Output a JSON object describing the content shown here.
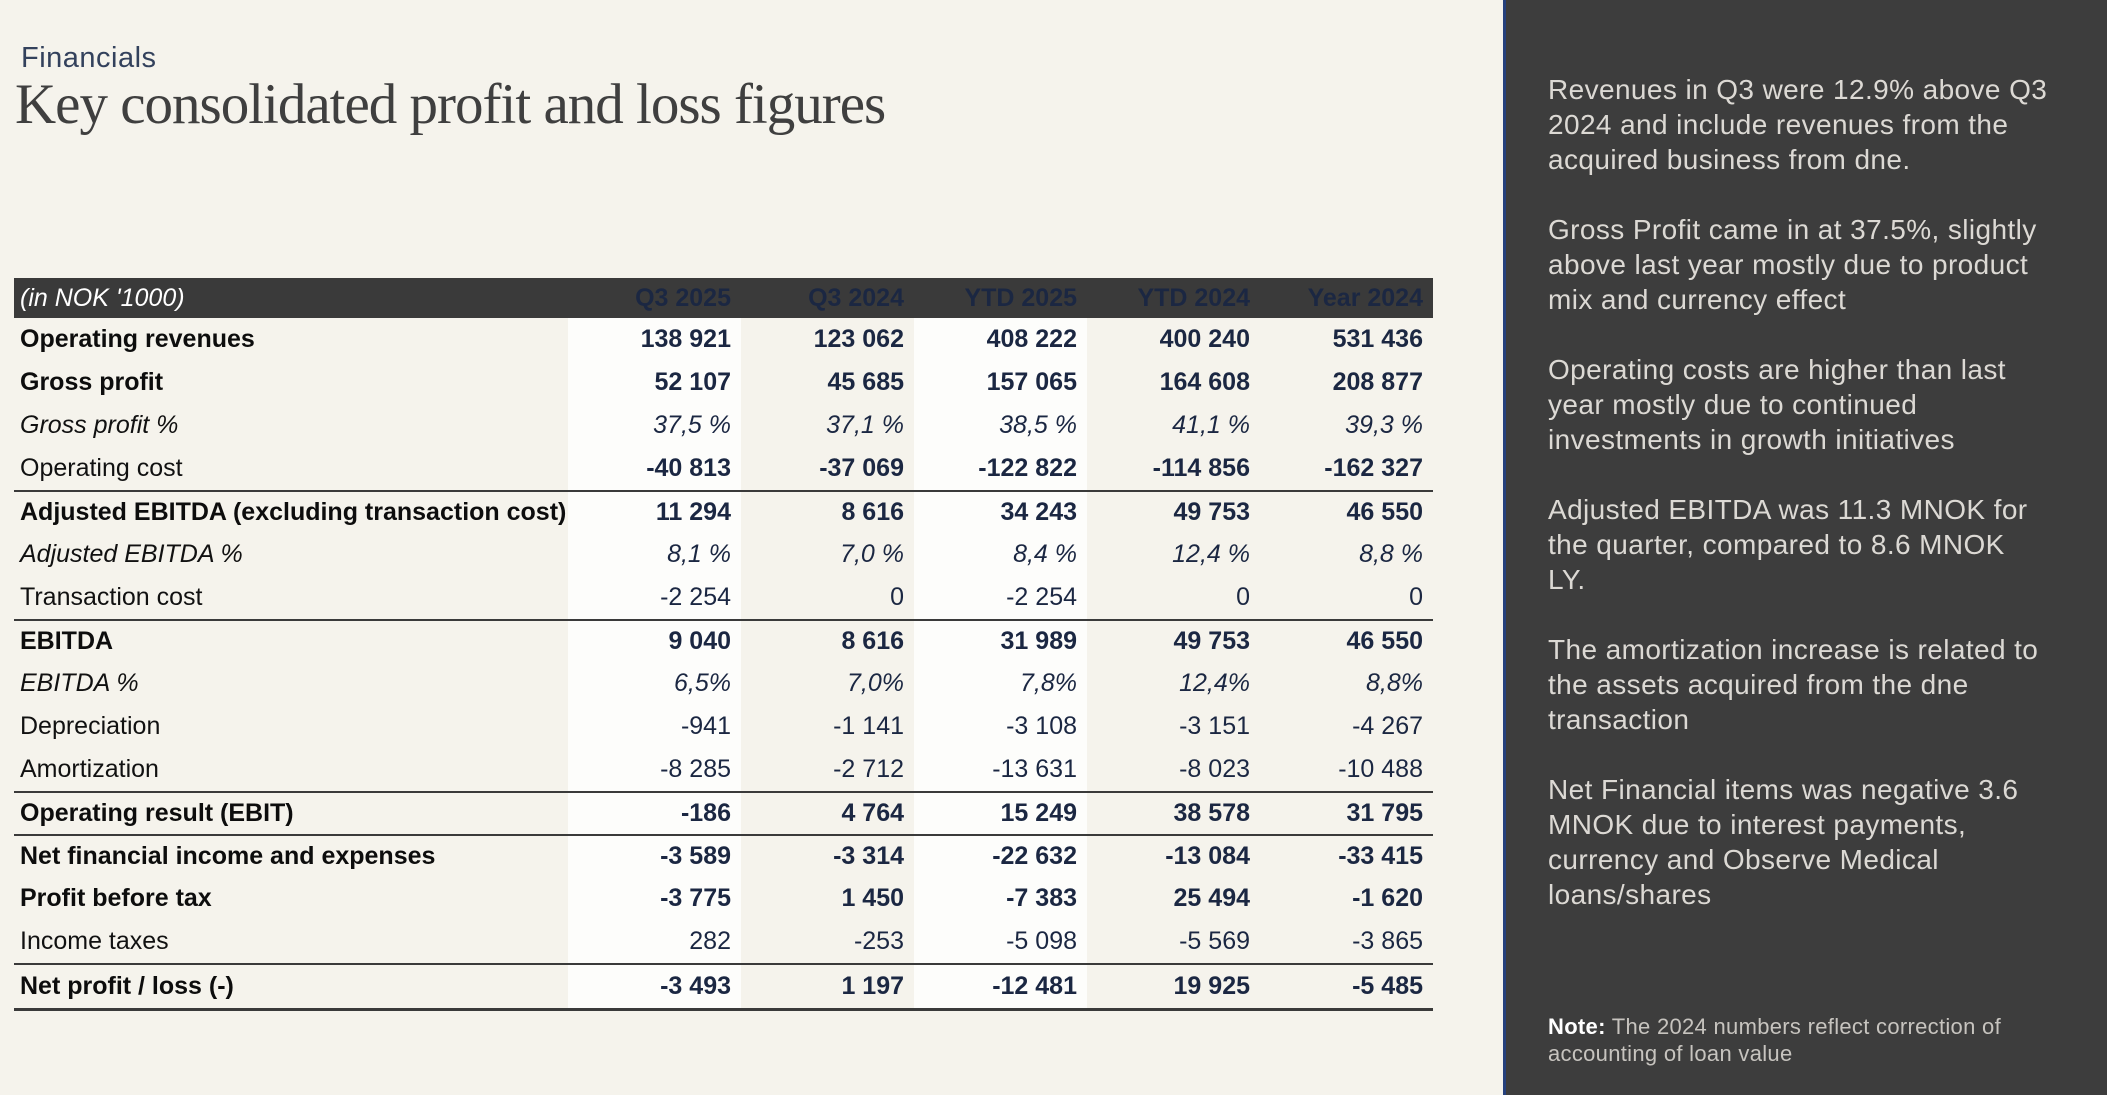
{
  "page": {
    "eyebrow": "Financials",
    "title": "Key consolidated profit and loss figures"
  },
  "table": {
    "unit_label": "(in NOK '1000)",
    "columns": [
      "Q3 2025",
      "Q3 2024",
      "YTD 2025",
      "YTD 2024",
      "Year 2024"
    ],
    "rows": [
      {
        "label": "Operating revenues",
        "values": [
          "138 921",
          "123 062",
          "408 222",
          "400 240",
          "531 436"
        ]
      },
      {
        "label": "Gross profit",
        "values": [
          "52 107",
          "45 685",
          "157 065",
          "164 608",
          "208 877"
        ]
      },
      {
        "label": "Gross profit %",
        "values": [
          "37,5 %",
          "37,1 %",
          "38,5 %",
          "41,1 %",
          "39,3 %"
        ]
      },
      {
        "label": "Operating cost",
        "values": [
          "-40 813",
          "-37 069",
          "-122 822",
          "-114 856",
          "-162 327"
        ]
      },
      {
        "label": "Adjusted EBITDA (excluding transaction cost)",
        "values": [
          "11 294",
          "8 616",
          "34 243",
          "49 753",
          "46 550"
        ]
      },
      {
        "label": "Adjusted EBITDA %",
        "values": [
          "8,1 %",
          "7,0 %",
          "8,4 %",
          "12,4 %",
          "8,8 %"
        ]
      },
      {
        "label": "Transaction cost",
        "values": [
          "-2 254",
          "0",
          "-2 254",
          "0",
          "0"
        ]
      },
      {
        "label": "EBITDA",
        "values": [
          "9 040",
          "8 616",
          "31 989",
          "49 753",
          "46 550"
        ]
      },
      {
        "label": "EBITDA %",
        "values": [
          "6,5%",
          "7,0%",
          "7,8%",
          "12,4%",
          "8,8%"
        ]
      },
      {
        "label": "Depreciation",
        "values": [
          "-941",
          "-1 141",
          "-3 108",
          "-3 151",
          "-4 267"
        ]
      },
      {
        "label": "Amortization",
        "values": [
          "-8 285",
          "-2 712",
          "-13 631",
          "-8 023",
          "-10 488"
        ]
      },
      {
        "label": "Operating result (EBIT)",
        "values": [
          "-186",
          "4 764",
          "15 249",
          "38 578",
          "31 795"
        ]
      },
      {
        "label": "Net financial income and expenses",
        "values": [
          "-3 589",
          "-3 314",
          "-22 632",
          "-13 084",
          "-33 415"
        ]
      },
      {
        "label": "Profit before tax",
        "values": [
          "-3 775",
          "1 450",
          "-7 383",
          "25 494",
          "-1 620"
        ]
      },
      {
        "label": "Income taxes",
        "values": [
          "282",
          "-253",
          "-5 098",
          "-5 569",
          "-3 865"
        ]
      },
      {
        "label": "Net profit / loss (-)",
        "values": [
          "-3 493",
          "1 197",
          "-12 481",
          "19 925",
          "-5 485"
        ]
      }
    ]
  },
  "sidebar": {
    "paragraphs": [
      "Revenues in Q3 were 12.9% above Q3 2024 and include revenues from the acquired business from dne.",
      "Gross Profit came in at 37.5%, slightly above last year mostly due to product mix and currency effect",
      "Operating costs are higher than last year mostly due to continued investments in growth initiatives",
      "Adjusted EBITDA was 11.3 MNOK for the quarter, compared to 8.6 MNOK LY.",
      "The amortization increase is related to the assets acquired from the dne transaction",
      "Net Financial items was negative 3.6 MNOK due to interest payments, currency and Observe Medical loans/shares"
    ],
    "note": {
      "label": "Note:",
      "text": "The 2024 numbers reflect correction of accounting of loan value"
    }
  },
  "colors": {
    "page_background": "#f5f3ec",
    "highlight_column": "#fdfdfb",
    "table_header_background": "#3a3a3a",
    "number_text": "#1b2742",
    "sidebar_background": "#3d3d3d",
    "sidebar_accent_line": "#25407c",
    "eyebrow_text": "#33415c"
  }
}
